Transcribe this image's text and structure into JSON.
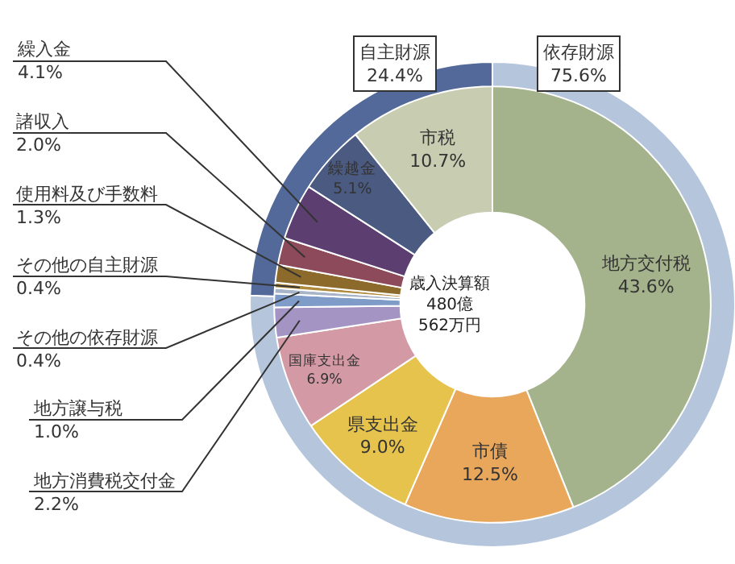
{
  "chart_data": [
    {
      "type": "donut",
      "categories": [
        "地方交付税",
        "市債",
        "県支出金",
        "国庫支出金",
        "地方消費税交付金",
        "地方譲与税",
        "その他の依存財源",
        "その他の自主財源",
        "使用料及び手数料",
        "諸収入",
        "繰入金",
        "繰越金",
        "市税"
      ],
      "values": [
        43.6,
        12.5,
        9.0,
        6.9,
        2.2,
        1.0,
        0.4,
        0.4,
        1.3,
        2.0,
        4.1,
        5.1,
        10.7
      ],
      "value_labels": [
        "43.6%",
        "12.5%",
        "9.0%",
        "6.9%",
        "2.2%",
        "1.0%",
        "0.4%",
        "0.4%",
        "1.3%",
        "2.0%",
        "4.1%",
        "5.1%",
        "10.7%"
      ],
      "colors": [
        "#a5b38c",
        "#e9a75c",
        "#e6c34c",
        "#d39aa6",
        "#a394c4",
        "#7f9cc9",
        "#a8b4c8",
        "#b08a3c",
        "#8c6a2c",
        "#8c4a5a",
        "#5c3f70",
        "#4a5a80",
        "#c8ccb0"
      ],
      "annotations": [
        "歳入決算額\n480億\n562万円"
      ]
    },
    {
      "type": "donut",
      "categories": [
        "依存財源",
        "自主財源"
      ],
      "values": [
        75.6,
        24.4
      ],
      "value_labels": [
        "75.6%",
        "24.4%"
      ],
      "colors": [
        "#b5c6dc",
        "#52699a"
      ]
    }
  ]
}
